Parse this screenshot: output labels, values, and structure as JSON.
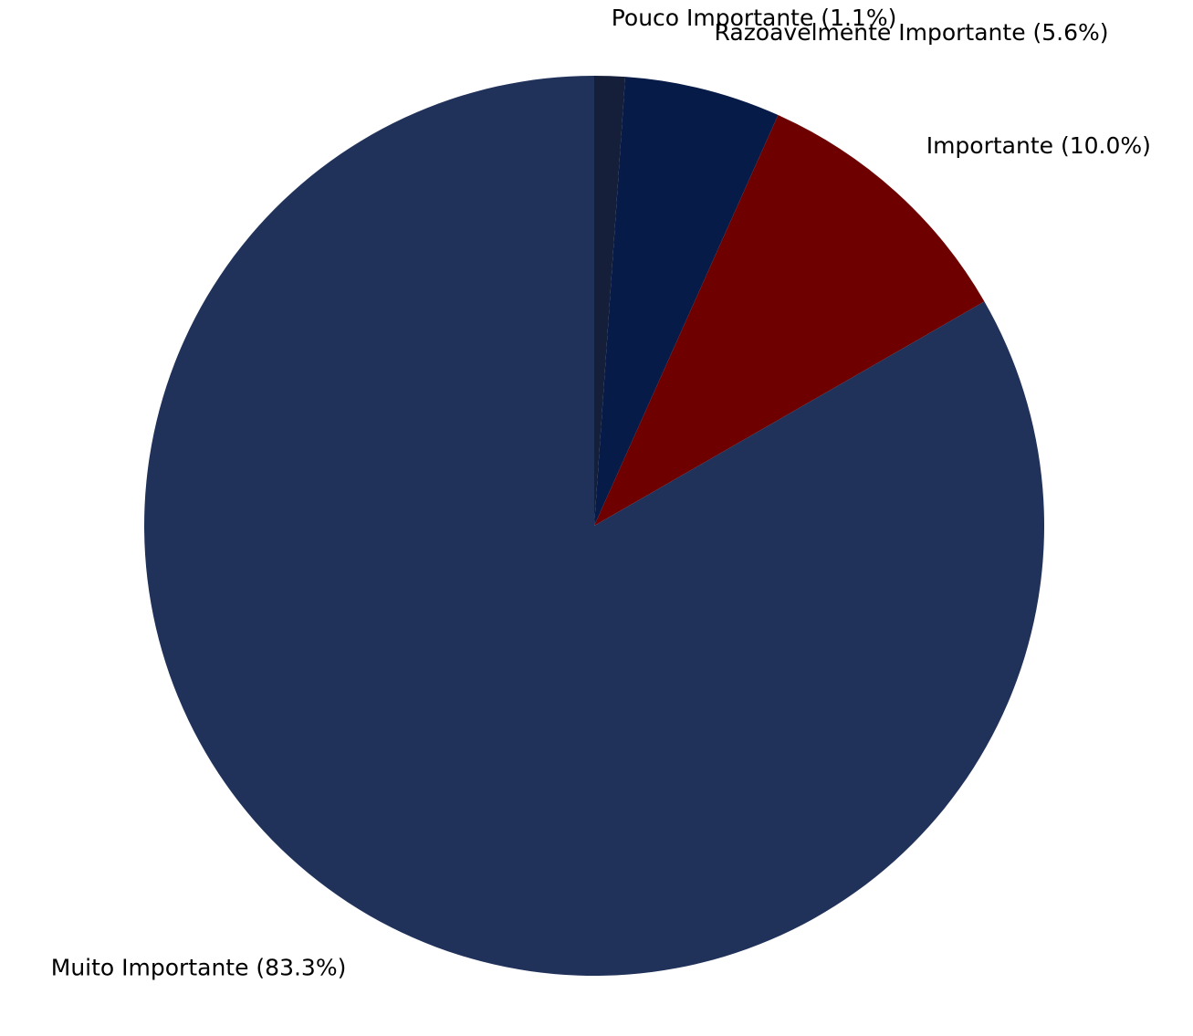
{
  "chart_data": {
    "type": "pie",
    "start_angle_deg": 90,
    "direction": "clockwise",
    "slices": [
      {
        "label": "Pouco Importante (1.1%)",
        "value": 1.1,
        "color": "#161f3a"
      },
      {
        "label": "Razoavelmente Importante (5.6%)",
        "value": 5.6,
        "color": "#061b47"
      },
      {
        "label": "Importante (10.0%)",
        "value": 10.0,
        "color": "#6e0000"
      },
      {
        "label": "Muito Importante (83.3%)",
        "value": 83.3,
        "color": "#20315a"
      }
    ]
  }
}
